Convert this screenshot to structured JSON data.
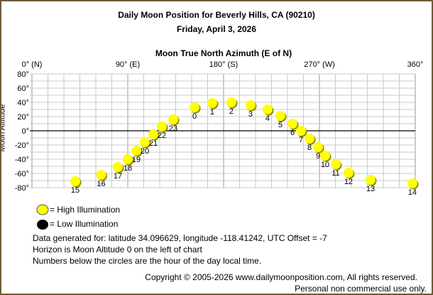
{
  "chart_data": {
    "type": "scatter",
    "title": "Daily Moon Position for Beverly Hills, CA (90210)",
    "subtitle": "Friday, April 3, 2026",
    "xlabel": "Moon True North Azimuth (E of N)",
    "ylabel": "Moon Altitude",
    "xlim": [
      0,
      360
    ],
    "ylim": [
      -80,
      80
    ],
    "x_ticks": [
      {
        "v": 0,
        "label": "0° (N)"
      },
      {
        "v": 90,
        "label": "90° (E)"
      },
      {
        "v": 180,
        "label": "180° (S)"
      },
      {
        "v": 270,
        "label": "270° (W)"
      },
      {
        "v": 360,
        "label": "360°"
      }
    ],
    "y_ticks": [
      {
        "v": 80,
        "label": "80°"
      },
      {
        "v": 60,
        "label": "60°"
      },
      {
        "v": 40,
        "label": "40°"
      },
      {
        "v": 20,
        "label": "20°"
      },
      {
        "v": 0,
        "label": "0°"
      },
      {
        "v": -20,
        "label": "-20°"
      },
      {
        "v": -40,
        "label": "-40°"
      },
      {
        "v": -60,
        "label": "-60°"
      },
      {
        "v": -80,
        "label": "-80°"
      }
    ],
    "grid": true,
    "points": [
      {
        "hour": "0",
        "az": 152.7,
        "alt": 33
      },
      {
        "hour": "1",
        "az": 169.3,
        "alt": 39
      },
      {
        "hour": "2",
        "az": 187.3,
        "alt": 40
      },
      {
        "hour": "3",
        "az": 205.3,
        "alt": 36
      },
      {
        "hour": "4",
        "az": 221.3,
        "alt": 30
      },
      {
        "hour": "5",
        "az": 233.3,
        "alt": 21
      },
      {
        "hour": "6",
        "az": 244.7,
        "alt": 10
      },
      {
        "hour": "7",
        "az": 252.7,
        "alt": 0
      },
      {
        "hour": "8",
        "az": 260.7,
        "alt": -11
      },
      {
        "hour": "9",
        "az": 268.7,
        "alt": -23
      },
      {
        "hour": "10",
        "az": 275.3,
        "alt": -35
      },
      {
        "hour": "11",
        "az": 285.3,
        "alt": -47
      },
      {
        "hour": "12",
        "az": 297.3,
        "alt": -59
      },
      {
        "hour": "13",
        "az": 318,
        "alt": -69
      },
      {
        "hour": "14",
        "az": 357.3,
        "alt": -74
      },
      {
        "hour": "15",
        "az": 40.7,
        "alt": -71
      },
      {
        "hour": "16",
        "az": 65,
        "alt": -62
      },
      {
        "hour": "17",
        "az": 80.7,
        "alt": -51
      },
      {
        "hour": "18",
        "az": 90,
        "alt": -40
      },
      {
        "hour": "19",
        "az": 98,
        "alt": -28
      },
      {
        "hour": "20",
        "az": 106,
        "alt": -16
      },
      {
        "hour": "21",
        "az": 114,
        "alt": -5
      },
      {
        "hour": "22",
        "az": 122,
        "alt": 6
      },
      {
        "hour": "23",
        "az": 132.7,
        "alt": 16
      }
    ],
    "colors": {
      "high": "#ffff00",
      "low": "#000000",
      "grid": "#c8c8c8",
      "border": "#6e5c36"
    }
  },
  "legend": {
    "high": "= High Illumination",
    "low": "= Low Illumination"
  },
  "notes": [
    "Data generated for: latitude 34.096629, longitude -118.41242, UTC Offset = -7",
    "Horizon is Moon Altitude 0 on the left of chart",
    "Numbers below the circles are the hour of the day local time."
  ],
  "copyright": "Copyright © 2005-2026 www.dailymoonposition.com, All rights reserved.",
  "usage": "Personal non commercial use only."
}
